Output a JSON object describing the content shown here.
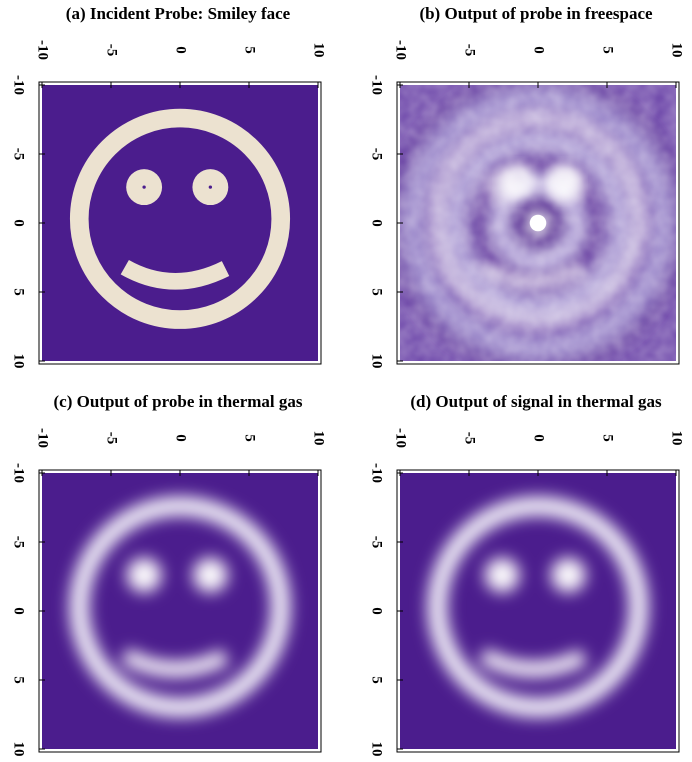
{
  "chart_data": [
    {
      "type": "image",
      "title": "(a) Incident Probe: Smiley face",
      "xlim": [
        -10,
        10
      ],
      "ylim": [
        -10,
        10
      ],
      "xticks": [
        -10,
        -5,
        0,
        5,
        10
      ],
      "yticks": [
        -10,
        -5,
        0,
        5,
        10
      ]
    },
    {
      "type": "image",
      "title": "(b) Output of probe in freespace",
      "xlim": [
        -10,
        10
      ],
      "ylim": [
        -10,
        10
      ],
      "xticks": [
        -10,
        -5,
        0,
        5,
        10
      ],
      "yticks": [
        -10,
        -5,
        0,
        5,
        10
      ]
    },
    {
      "type": "image",
      "title": "(c) Output of probe in thermal gas",
      "xlim": [
        -10,
        10
      ],
      "ylim": [
        -10,
        10
      ],
      "xticks": [
        -10,
        -5,
        0,
        5,
        10
      ],
      "yticks": [
        -10,
        -5,
        0,
        5,
        10
      ]
    },
    {
      "type": "image",
      "title": "(d) Output of signal in thermal gas",
      "xlim": [
        -10,
        10
      ],
      "ylim": [
        -10,
        10
      ],
      "xticks": [
        -10,
        -5,
        0,
        5,
        10
      ],
      "yticks": [
        -10,
        -5,
        0,
        5,
        10
      ]
    }
  ]
}
